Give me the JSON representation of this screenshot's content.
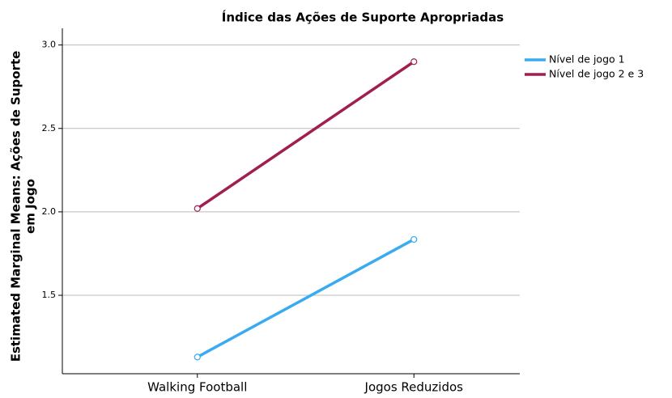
{
  "chart_data": {
    "type": "line",
    "title": "Índice das Ações de Suporte Apropriadas",
    "ylabel": [
      "Estimated Marginal Means: Ações de Suporte",
      "em Jogo"
    ],
    "categories": [
      "Walking Football",
      "Jogos Reduzidos"
    ],
    "series": [
      {
        "name": "Nível de jogo 1",
        "color": "#3aabf0",
        "values": [
          1.13,
          1.835
        ]
      },
      {
        "name": "Nível de jogo 2 e 3",
        "color": "#a11f50",
        "values": [
          2.02,
          2.9
        ]
      }
    ],
    "ylim": [
      1.03,
      3.1
    ],
    "yticks": [
      1.5,
      {
        "value": 2,
        "label": "2.0"
      },
      2.5,
      {
        "value": 3,
        "label": "3.0"
      }
    ],
    "grid": true,
    "legend": "top-right"
  }
}
